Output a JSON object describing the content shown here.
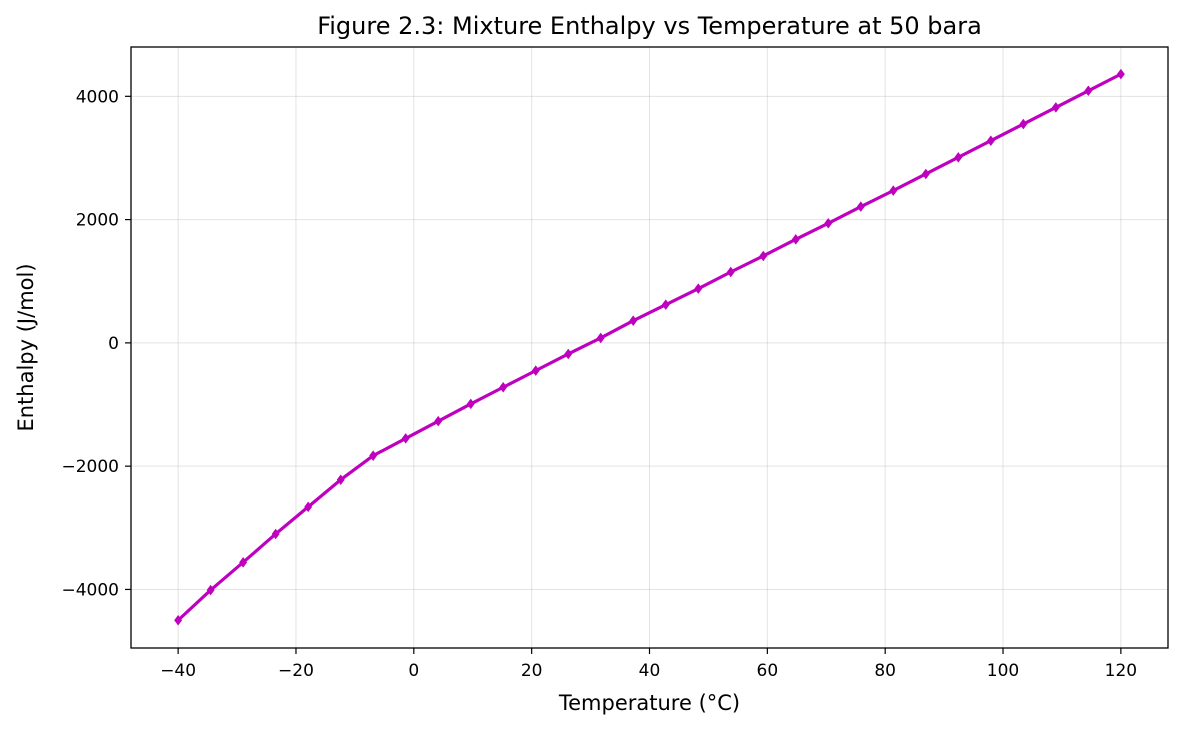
{
  "chart_data": {
    "type": "line",
    "title": "Figure 2.3: Mixture Enthalpy vs Temperature at 50 bara",
    "xlabel": "Temperature (°C)",
    "ylabel": "Enthalpy (J/mol)",
    "xlim": [
      -48,
      128
    ],
    "ylim": [
      -4950,
      4800
    ],
    "xticks": [
      -40,
      -20,
      0,
      20,
      40,
      60,
      80,
      100,
      120
    ],
    "xtick_labels": [
      "−40",
      "−20",
      "0",
      "20",
      "40",
      "60",
      "80",
      "100",
      "120"
    ],
    "yticks": [
      -4000,
      -2000,
      0,
      2000,
      4000
    ],
    "ytick_labels": [
      "−4000",
      "−2000",
      "0",
      "2000",
      "4000"
    ],
    "grid": true,
    "color": "#bf00bf",
    "marker": "diamond",
    "series": [
      {
        "x": [
          -40,
          -34.48,
          -28.97,
          -23.45,
          -17.93,
          -12.41,
          -6.9,
          -1.38,
          4.14,
          9.66,
          15.17,
          20.69,
          26.21,
          31.72,
          37.24,
          42.76,
          48.28,
          53.79,
          59.31,
          64.83,
          70.34,
          75.86,
          81.38,
          86.9,
          92.41,
          97.93,
          103.45,
          108.97,
          114.48,
          120
        ],
        "y": [
          -4500,
          -4010,
          -3560,
          -3100,
          -2660,
          -2220,
          -1830,
          -1550,
          -1270,
          -990,
          -720,
          -450,
          -180,
          80,
          360,
          620,
          880,
          1150,
          1410,
          1680,
          1940,
          2210,
          2470,
          2740,
          3010,
          3280,
          3550,
          3820,
          4090,
          4360
        ]
      }
    ]
  }
}
